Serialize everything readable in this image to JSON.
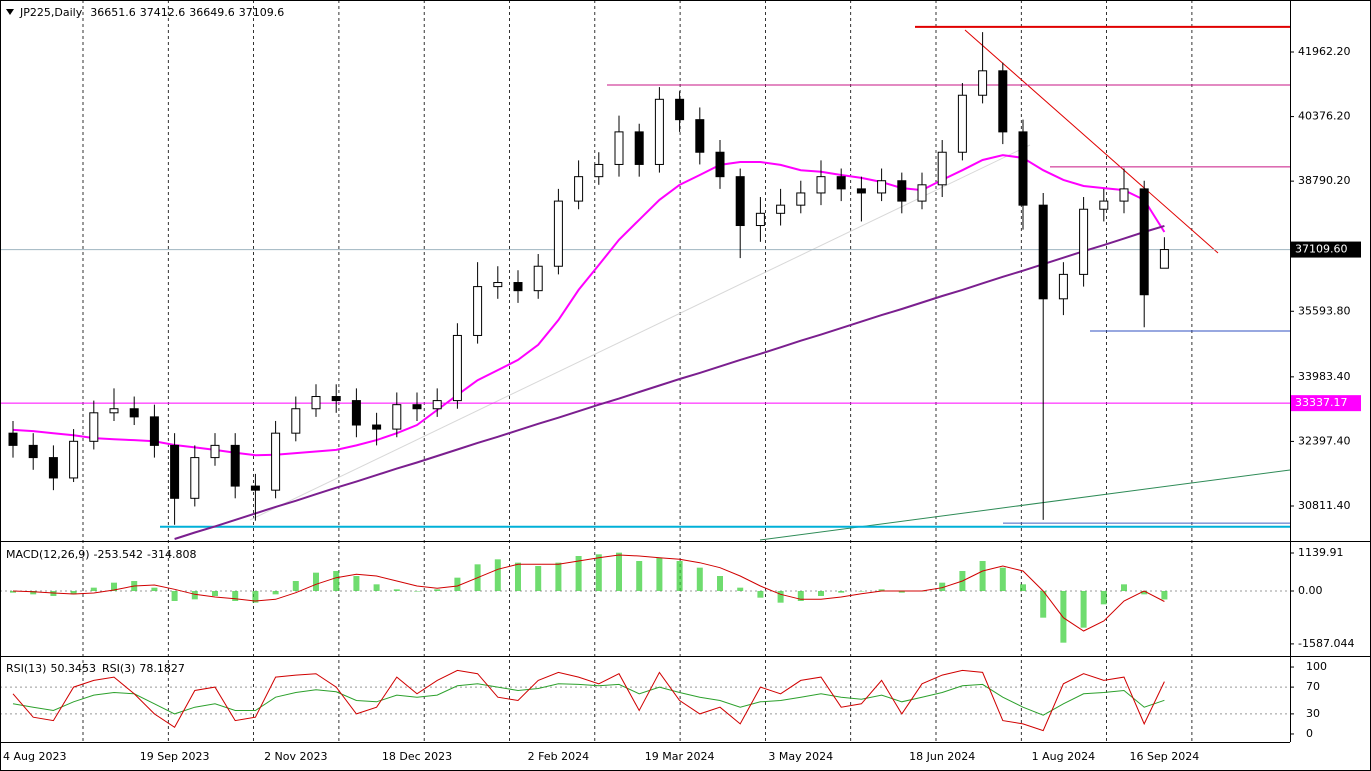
{
  "chart_data": {
    "type": "candlestick",
    "title": "JP225,Daily",
    "categories": [
      "4 Aug 2023",
      null,
      null,
      null,
      null,
      null,
      null,
      null,
      "19 Sep 2023",
      null,
      null,
      null,
      null,
      null,
      "2 Nov 2023",
      null,
      null,
      null,
      null,
      null,
      "18 Dec 2023",
      null,
      null,
      null,
      null,
      null,
      null,
      "2 Feb 2024",
      null,
      null,
      null,
      null,
      null,
      "19 Mar 2024",
      null,
      null,
      null,
      null,
      null,
      "3 May 2024",
      null,
      null,
      null,
      null,
      null,
      null,
      "18 Jun 2024",
      null,
      null,
      null,
      null,
      null,
      "1 Aug 2024",
      null,
      null,
      null,
      null,
      "16 Sep 2024"
    ],
    "open": [
      32600,
      32300,
      32000,
      31500,
      32400,
      33100,
      33200,
      33000,
      32300,
      31000,
      32000,
      32300,
      31300,
      31200,
      32600,
      33200,
      33500,
      33400,
      32800,
      32700,
      33300,
      33200,
      33400,
      35000,
      36200,
      36300,
      36100,
      36700,
      38300,
      38900,
      39200,
      40000,
      39200,
      40800,
      40300,
      39500,
      38900,
      37700,
      38000,
      38200,
      38500,
      38900,
      38600,
      38500,
      38800,
      38300,
      38700,
      39500,
      40900,
      41500,
      40000,
      38200,
      35900,
      36500,
      38100,
      38300,
      38600,
      36651.6
    ],
    "high": [
      32900,
      32600,
      32300,
      32700,
      33400,
      33700,
      33500,
      33300,
      32600,
      32300,
      32600,
      32600,
      31600,
      32900,
      33500,
      33800,
      33800,
      33700,
      33100,
      33600,
      33600,
      33700,
      35300,
      36800,
      36700,
      36600,
      37000,
      38600,
      39300,
      39500,
      40400,
      40200,
      41100,
      41000,
      40600,
      39800,
      39100,
      38400,
      38600,
      38800,
      39300,
      39100,
      38900,
      39100,
      39000,
      39000,
      39800,
      41200,
      42450,
      41700,
      40300,
      38500,
      36800,
      38400,
      38600,
      39100,
      38800,
      37412.6
    ],
    "low": [
      32000,
      31700,
      31200,
      31400,
      32200,
      32900,
      32800,
      32000,
      30350,
      30800,
      31800,
      31000,
      30450,
      31000,
      32400,
      33000,
      33100,
      32500,
      32300,
      32500,
      32900,
      33000,
      33200,
      34800,
      35900,
      35800,
      35900,
      36500,
      38100,
      38700,
      38900,
      38900,
      39000,
      40000,
      39200,
      38600,
      36900,
      37300,
      37700,
      38000,
      38200,
      38300,
      37800,
      38300,
      38000,
      38100,
      38400,
      39300,
      40700,
      39700,
      37600,
      30470,
      35500,
      36200,
      37800,
      38000,
      35200,
      36649.6
    ],
    "close": [
      32300,
      32000,
      31500,
      32400,
      33100,
      33200,
      33000,
      32300,
      31000,
      32000,
      32300,
      31300,
      31200,
      32600,
      33200,
      33500,
      33400,
      32800,
      32700,
      33300,
      33200,
      33400,
      35000,
      36200,
      36300,
      36100,
      36700,
      38300,
      38900,
      39200,
      40000,
      39200,
      40800,
      40300,
      39500,
      38900,
      37700,
      38000,
      38200,
      38500,
      38900,
      38600,
      38500,
      38800,
      38300,
      38700,
      39500,
      40900,
      41500,
      40000,
      38200,
      35900,
      36500,
      38100,
      38300,
      38600,
      36000,
      37109.6
    ],
    "up_color": "#ffffff",
    "down_color": "#000000",
    "edge_color": "#000000",
    "ylim": [
      29976,
      43141
    ],
    "yticks": [
      {
        "value": 41962.2,
        "label": "41962.20"
      },
      {
        "value": 40376.2,
        "label": "40376.20"
      },
      {
        "value": 38790.2,
        "label": "38790.20"
      },
      {
        "value": 35593.8,
        "label": "35593.80"
      },
      {
        "value": 33983.4,
        "label": "33983.40"
      },
      {
        "value": 32397.4,
        "label": "32397.40"
      },
      {
        "value": 30811.4,
        "label": "30811.40"
      }
    ],
    "overlays": [
      {
        "color": "#ff00ff",
        "values": [
          32680,
          32650,
          32600,
          32550,
          32480,
          32450,
          32430,
          32400,
          32310,
          32250,
          32190,
          32120,
          32060,
          32070,
          32110,
          32150,
          32190,
          32300,
          32430,
          32600,
          32800,
          33170,
          33540,
          33900,
          34150,
          34400,
          34770,
          35380,
          36120,
          36730,
          37350,
          37840,
          38330,
          38700,
          38940,
          39190,
          39260,
          39260,
          39190,
          39060,
          39020,
          38940,
          38870,
          38770,
          38620,
          38570,
          38820,
          39060,
          39310,
          39430,
          39360,
          39060,
          38820,
          38670,
          38620,
          38570,
          38330,
          37540
        ]
      },
      {
        "color": "#7b1f8f",
        "values": [
          null,
          null,
          null,
          null,
          null,
          null,
          null,
          null,
          30000,
          30160,
          30310,
          30470,
          30630,
          30790,
          30940,
          31100,
          31260,
          31410,
          31570,
          31730,
          31880,
          32040,
          32200,
          32360,
          32510,
          32670,
          32830,
          32980,
          33140,
          33300,
          33450,
          33610,
          33770,
          33930,
          34080,
          34240,
          34400,
          34550,
          34710,
          34870,
          35020,
          35180,
          35340,
          35500,
          35650,
          35810,
          35970,
          36120,
          36280,
          36440,
          36590,
          36750,
          36910,
          37070,
          37220,
          37380,
          37540,
          37690
        ]
      }
    ],
    "levels": [
      {
        "value": 42580,
        "color": "#e00000"
      },
      {
        "value": 41150,
        "color": "#c71585"
      },
      {
        "value": 39140,
        "color": "#c71585"
      },
      {
        "value": 35110,
        "color": "#3050c0"
      },
      {
        "value": 30300,
        "color": "#00b0d8"
      },
      {
        "value": 30390,
        "color": "#4060c0"
      }
    ],
    "price_labels": [
      {
        "value": 37109.6,
        "label": "37109.60",
        "color": "#000000",
        "line": "#9fb4c0"
      },
      {
        "value": 33337.17,
        "label": "33337.17",
        "color": "#ff00ff",
        "line": "#ff00ff"
      }
    ],
    "macd": {
      "name": "MACD(12,26,9)",
      "ylim": [
        -1920,
        1440
      ],
      "yticks": [
        1139.91,
        {
          "value": 0,
          "label": "0.00"
        },
        -1587.044
      ],
      "histogram": {
        "color": "#32cd32",
        "values": [
          -50,
          -100,
          -150,
          -100,
          100,
          250,
          300,
          100,
          -300,
          -250,
          -150,
          -300,
          -350,
          -100,
          300,
          550,
          600,
          450,
          200,
          50,
          0,
          50,
          400,
          800,
          950,
          850,
          750,
          850,
          1050,
          1100,
          1150,
          900,
          1000,
          900,
          700,
          450,
          100,
          -200,
          -350,
          -300,
          -150,
          -50,
          0,
          50,
          -50,
          0,
          250,
          600,
          900,
          700,
          200,
          -800,
          -1550,
          -1100,
          -400,
          200,
          -100,
          -253.542
        ]
      },
      "signal": {
        "color": "#d00000",
        "values": [
          0,
          -20,
          -60,
          -90,
          -60,
          30,
          150,
          180,
          50,
          -100,
          -180,
          -230,
          -300,
          -250,
          -50,
          200,
          400,
          500,
          450,
          300,
          150,
          80,
          150,
          400,
          650,
          800,
          800,
          800,
          900,
          1000,
          1080,
          1050,
          1000,
          950,
          850,
          700,
          450,
          150,
          -100,
          -250,
          -250,
          -180,
          -80,
          0,
          0,
          0,
          100,
          300,
          600,
          750,
          600,
          0,
          -800,
          -1200,
          -900,
          -300,
          0,
          -314.808
        ]
      }
    },
    "rsi": {
      "ylim": [
        -12,
        112
      ],
      "yticks": [
        100,
        70,
        30,
        0
      ],
      "series": [
        {
          "name": "RSI(13)",
          "color": "#2ca02c",
          "values": [
            45,
            40,
            35,
            48,
            58,
            62,
            60,
            45,
            30,
            40,
            45,
            35,
            35,
            55,
            62,
            66,
            63,
            50,
            48,
            58,
            55,
            58,
            72,
            75,
            70,
            65,
            68,
            75,
            74,
            72,
            74,
            60,
            70,
            62,
            55,
            50,
            40,
            48,
            50,
            55,
            60,
            55,
            52,
            58,
            48,
            55,
            62,
            72,
            74,
            55,
            40,
            28,
            45,
            60,
            62,
            65,
            40,
            50.3453
          ]
        },
        {
          "name": "RSI(3)",
          "color": "#d00000",
          "values": [
            60,
            25,
            20,
            70,
            80,
            85,
            60,
            30,
            10,
            65,
            70,
            20,
            25,
            85,
            88,
            90,
            70,
            30,
            40,
            85,
            60,
            80,
            95,
            90,
            55,
            50,
            80,
            92,
            85,
            75,
            90,
            35,
            92,
            50,
            30,
            40,
            15,
            70,
            60,
            80,
            85,
            40,
            45,
            80,
            30,
            75,
            88,
            95,
            92,
            20,
            15,
            5,
            75,
            90,
            80,
            85,
            15,
            78.1827
          ]
        }
      ]
    }
  }
}
